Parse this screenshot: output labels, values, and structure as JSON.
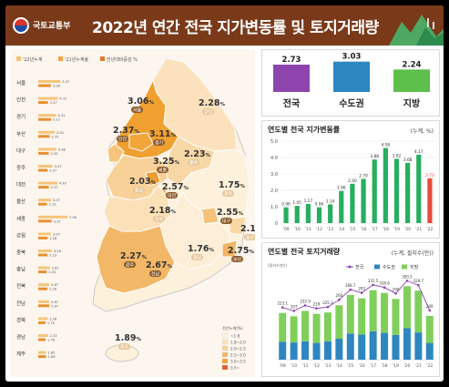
{
  "header": {
    "ministry": "국토교통부",
    "title": "2022년 연간 전국 지가변동률 및 토지거래량"
  },
  "left": {
    "legend": [
      "'22년누계",
      "'21년누계율",
      "전년대비증감 %"
    ],
    "bar_rows": [
      {
        "label": "서울",
        "v1": "3.06",
        "v2": "5.37"
      },
      {
        "label": "인천",
        "v1": "2.37",
        "v2": "4.72"
      },
      {
        "label": "경기",
        "v1": "3.11",
        "v2": "4.31"
      },
      {
        "label": "부산",
        "v1": "2.75",
        "v2": "4.01"
      },
      {
        "label": "대구",
        "v1": "2.55",
        "v2": "4.38"
      },
      {
        "label": "광주",
        "v1": "2.27",
        "v2": "3.47"
      },
      {
        "label": "대전",
        "v1": "2.57",
        "v2": "4.67"
      },
      {
        "label": "울산",
        "v1": "2.12",
        "v2": "3.07"
      },
      {
        "label": "세종",
        "v1": "3.25",
        "v2": "7.06"
      },
      {
        "label": "강원",
        "v1": "2.28",
        "v2": "3.05"
      },
      {
        "label": "충북",
        "v1": "2.23",
        "v2": "3.28"
      },
      {
        "label": "충남",
        "v1": "2.03",
        "v2": "2.81"
      },
      {
        "label": "전북",
        "v1": "2.18",
        "v2": "2.67"
      },
      {
        "label": "전남",
        "v1": "2.67",
        "v2": "2.67"
      },
      {
        "label": "경북",
        "v1": "1.75",
        "v2": "2.26"
      },
      {
        "label": "경남",
        "v1": "1.76",
        "v2": "2.33"
      },
      {
        "label": "제주",
        "v1": "1.89",
        "v2": "1.85"
      }
    ],
    "map_legend_title": "전년누계(%)",
    "map_legend_items": [
      "~1.8",
      "1.8~2.0",
      "2.0~2.5",
      "2.5~3.0",
      "3.0~3.5",
      "3.5~"
    ],
    "percent_sign": "%"
  },
  "map_regions": [
    {
      "name": "서울",
      "value": "3.06",
      "color": "#f2a53b",
      "dark": true
    },
    {
      "name": "인천",
      "value": "2.37",
      "color": "#f6c47a",
      "dark": true
    },
    {
      "name": "경기",
      "value": "3.11",
      "color": "#f0a030",
      "dark": true
    },
    {
      "name": "강원",
      "value": "2.28",
      "color": "#fbe2bd",
      "dark": false
    },
    {
      "name": "충북",
      "value": "2.23",
      "color": "#f8d7a6",
      "dark": false
    },
    {
      "name": "세종",
      "value": "3.25",
      "color": "#eb9c33",
      "dark": true
    },
    {
      "name": "충남",
      "value": "2.03",
      "color": "#f8d199",
      "dark": false
    },
    {
      "name": "대전",
      "value": "2.57",
      "color": "#f3b867",
      "dark": true
    },
    {
      "name": "경북",
      "value": "1.75",
      "color": "#fdf1dc",
      "dark": false
    },
    {
      "name": "대구",
      "value": "2.55",
      "color": "#f5c27c",
      "dark": true
    },
    {
      "name": "전북",
      "value": "2.18",
      "color": "#fbe0b8",
      "dark": false
    },
    {
      "name": "울산",
      "value": "2.12",
      "color": "#f9d8a5",
      "dark": false
    },
    {
      "name": "경남",
      "value": "1.76",
      "color": "#fdefd7",
      "dark": false
    },
    {
      "name": "부산",
      "value": "2.75",
      "color": "#f2b564",
      "dark": true
    },
    {
      "name": "광주",
      "value": "2.27",
      "color": "#f5c27c",
      "dark": true
    },
    {
      "name": "전남",
      "value": "2.67",
      "color": "#f3b867",
      "dark": true
    },
    {
      "name": "제주",
      "value": "1.89",
      "color": "#fdf1dc",
      "dark": false
    }
  ],
  "chart_data": [
    {
      "type": "bar",
      "categories": [
        "전국",
        "수도권",
        "지방"
      ],
      "values": [
        2.73,
        3.03,
        2.24
      ],
      "colors": [
        "#8e44ad",
        "#2e86c1",
        "#5cc04a"
      ]
    },
    {
      "type": "bar",
      "title": "연도별 전국 지가변동률",
      "unit": "(누계, %)",
      "categories": [
        "'09",
        "'10",
        "'11",
        "'12",
        "'13",
        "'14",
        "'15",
        "'16",
        "'17",
        "'18",
        "'19",
        "'20",
        "'21",
        "'22"
      ],
      "values": [
        0.96,
        1.05,
        1.17,
        0.96,
        1.14,
        1.96,
        2.4,
        2.7,
        3.88,
        4.58,
        3.92,
        3.68,
        4.17,
        2.73
      ],
      "ylim": [
        0,
        5
      ],
      "yticks": [
        "0",
        "1.0",
        "2.0",
        "3.0",
        "4.0",
        "5.0"
      ],
      "highlight_color": "#e74c3c",
      "bar_color": "#27ae60"
    },
    {
      "type": "bar+line",
      "title": "연도별 전국 토지거래량",
      "unit": "(누계, 필지수(만))",
      "ylabel": "(필지수(만))",
      "legend": [
        "전국",
        "수도권",
        "지방"
      ],
      "categories": [
        "'09",
        "'10",
        "'11",
        "'12",
        "'13",
        "'14",
        "'15",
        "'16",
        "'17",
        "'18",
        "'19",
        "'20",
        "'21",
        "'22"
      ],
      "series": [
        {
          "name": "전국",
          "values": [
            223.1,
            207,
            232.9,
            219,
            225.3,
            260,
            308.7,
            293,
            331.5,
            318.6,
            290,
            350.5,
            329.7,
            209
          ]
        },
        {
          "name": "수도권",
          "values": [
            85,
            82,
            88,
            80,
            88,
            100,
            125,
            120,
            135,
            128,
            118,
            150,
            130,
            80
          ]
        },
        {
          "name": "지방",
          "values": [
            138.1,
            125,
            144.9,
            139,
            137.3,
            160,
            183.7,
            173,
            196.5,
            190.6,
            172,
            200.5,
            199.7,
            129
          ]
        }
      ],
      "labels": [
        "223.1",
        "207",
        "232.9",
        "219",
        "225.3",
        "260",
        "308.7",
        "293",
        "331.5",
        "318.6",
        "290",
        "350.5",
        "329.7",
        "209"
      ],
      "ylim": [
        0,
        400
      ]
    }
  ]
}
